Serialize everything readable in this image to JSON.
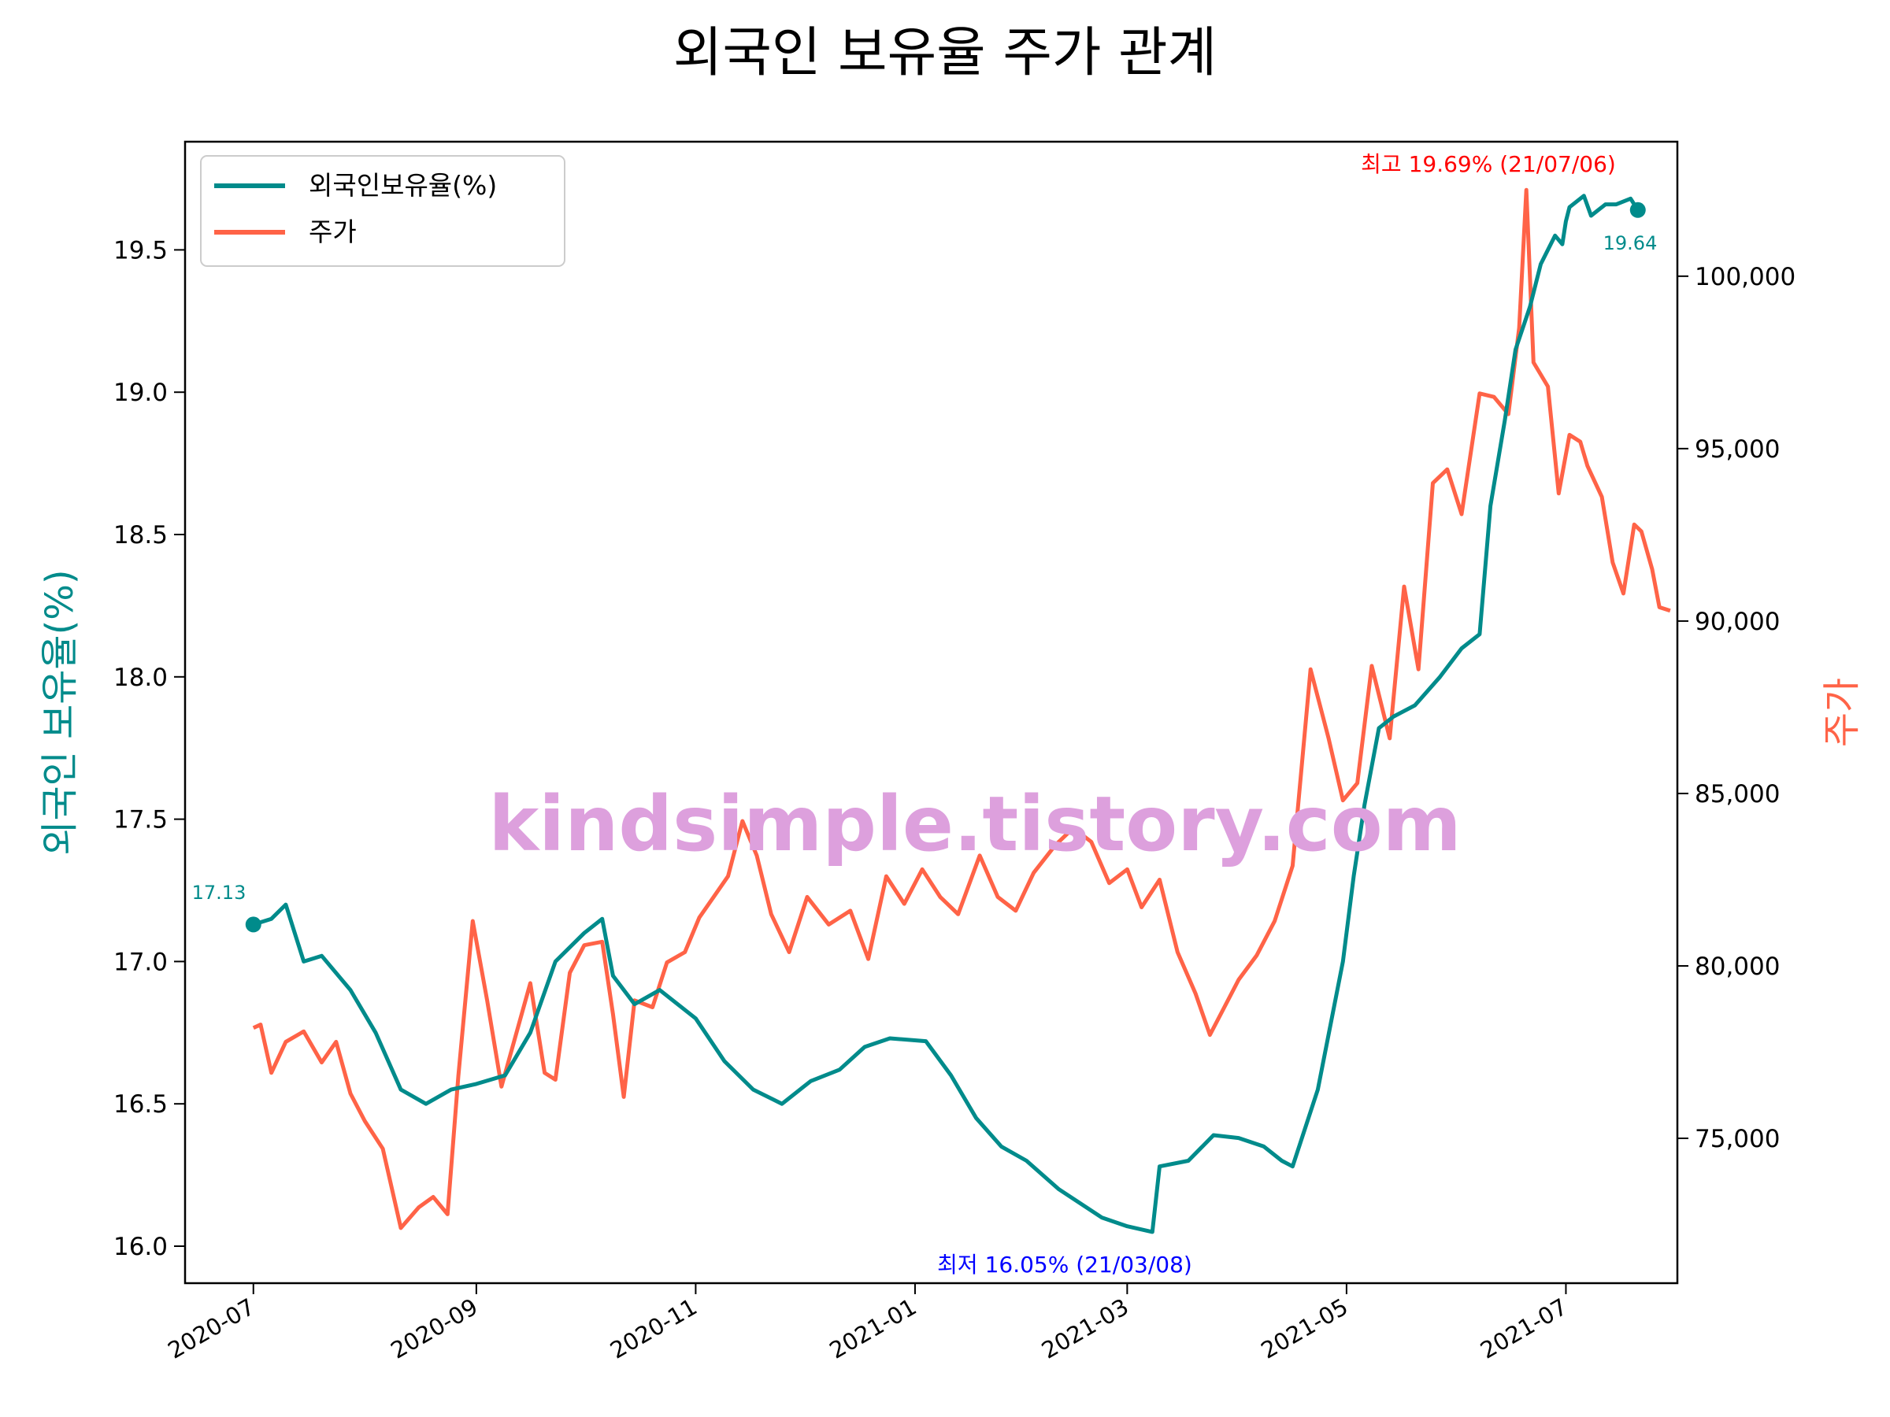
{
  "chart_data": {
    "type": "line",
    "title": "외국인 보유율 주가 관계",
    "ylabel_left": "외국인 보유율(%)",
    "ylabel_right": "주가",
    "x_range": [
      "2020-06-12",
      "2021-08-01"
    ],
    "ylim_left": [
      15.87,
      19.88
    ],
    "ylim_right": [
      70800,
      103900
    ],
    "x_ticks": [
      "2020-07",
      "2020-09",
      "2020-11",
      "2021-01",
      "2021-03",
      "2021-05",
      "2021-07"
    ],
    "y_ticks_left": [
      "16.0",
      "16.5",
      "17.0",
      "17.5",
      "18.0",
      "18.5",
      "19.0",
      "19.5"
    ],
    "y_ticks_right": [
      "75,000",
      "80,000",
      "85,000",
      "90,000",
      "95,000",
      "100,000"
    ],
    "legend_position": "top-left",
    "colors": {
      "foreign": "#008B8B",
      "price": "#FF6347",
      "max": "#FF0000",
      "min": "#0000FF",
      "watermark": "#DDA0DD"
    },
    "series": [
      {
        "name": "외국인보유율(%)",
        "axis": "left",
        "points": [
          [
            "2020-07-01",
            17.13
          ],
          [
            "2020-07-06",
            17.15
          ],
          [
            "2020-07-10",
            17.2
          ],
          [
            "2020-07-15",
            17.0
          ],
          [
            "2020-07-20",
            17.02
          ],
          [
            "2020-07-28",
            16.9
          ],
          [
            "2020-08-04",
            16.75
          ],
          [
            "2020-08-11",
            16.55
          ],
          [
            "2020-08-18",
            16.5
          ],
          [
            "2020-08-25",
            16.55
          ],
          [
            "2020-09-01",
            16.57
          ],
          [
            "2020-09-09",
            16.6
          ],
          [
            "2020-09-16",
            16.75
          ],
          [
            "2020-09-23",
            17.0
          ],
          [
            "2020-10-01",
            17.1
          ],
          [
            "2020-10-06",
            17.15
          ],
          [
            "2020-10-09",
            16.95
          ],
          [
            "2020-10-15",
            16.85
          ],
          [
            "2020-10-22",
            16.9
          ],
          [
            "2020-11-01",
            16.8
          ],
          [
            "2020-11-09",
            16.65
          ],
          [
            "2020-11-17",
            16.55
          ],
          [
            "2020-11-25",
            16.5
          ],
          [
            "2020-12-03",
            16.58
          ],
          [
            "2020-12-11",
            16.62
          ],
          [
            "2020-12-18",
            16.7
          ],
          [
            "2020-12-25",
            16.73
          ],
          [
            "2021-01-04",
            16.72
          ],
          [
            "2021-01-11",
            16.6
          ],
          [
            "2021-01-18",
            16.45
          ],
          [
            "2021-01-25",
            16.35
          ],
          [
            "2021-02-01",
            16.3
          ],
          [
            "2021-02-10",
            16.2
          ],
          [
            "2021-02-22",
            16.1
          ],
          [
            "2021-03-01",
            16.07
          ],
          [
            "2021-03-08",
            16.05
          ],
          [
            "2021-03-10",
            16.28
          ],
          [
            "2021-03-18",
            16.3
          ],
          [
            "2021-03-25",
            16.39
          ],
          [
            "2021-04-01",
            16.38
          ],
          [
            "2021-04-08",
            16.35
          ],
          [
            "2021-04-13",
            16.3
          ],
          [
            "2021-04-16",
            16.28
          ],
          [
            "2021-04-23",
            16.55
          ],
          [
            "2021-04-30",
            17.0
          ],
          [
            "2021-05-03",
            17.3
          ],
          [
            "2021-05-06",
            17.55
          ],
          [
            "2021-05-10",
            17.82
          ],
          [
            "2021-05-14",
            17.86
          ],
          [
            "2021-05-20",
            17.9
          ],
          [
            "2021-05-27",
            18.0
          ],
          [
            "2021-06-02",
            18.1
          ],
          [
            "2021-06-07",
            18.15
          ],
          [
            "2021-06-10",
            18.6
          ],
          [
            "2021-06-14",
            18.9
          ],
          [
            "2021-06-17",
            19.15
          ],
          [
            "2021-06-21",
            19.3
          ],
          [
            "2021-06-24",
            19.45
          ],
          [
            "2021-06-28",
            19.55
          ],
          [
            "2021-06-30",
            19.52
          ],
          [
            "2021-07-01",
            19.6
          ],
          [
            "2021-07-02",
            19.65
          ],
          [
            "2021-07-06",
            19.69
          ],
          [
            "2021-07-08",
            19.62
          ],
          [
            "2021-07-12",
            19.66
          ],
          [
            "2021-07-15",
            19.66
          ],
          [
            "2021-07-19",
            19.68
          ],
          [
            "2021-07-21",
            19.64
          ]
        ]
      },
      {
        "name": "주가",
        "axis": "right",
        "points": [
          [
            "2020-07-01",
            78200
          ],
          [
            "2020-07-03",
            78300
          ],
          [
            "2020-07-06",
            76900
          ],
          [
            "2020-07-10",
            77800
          ],
          [
            "2020-07-15",
            78100
          ],
          [
            "2020-07-20",
            77200
          ],
          [
            "2020-07-24",
            77800
          ],
          [
            "2020-07-28",
            76300
          ],
          [
            "2020-08-01",
            75500
          ],
          [
            "2020-08-06",
            74700
          ],
          [
            "2020-08-11",
            72400
          ],
          [
            "2020-08-16",
            73000
          ],
          [
            "2020-08-20",
            73300
          ],
          [
            "2020-08-24",
            72800
          ],
          [
            "2020-08-27",
            76800
          ],
          [
            "2020-08-31",
            81300
          ],
          [
            "2020-09-04",
            79000
          ],
          [
            "2020-09-08",
            76500
          ],
          [
            "2020-09-12",
            78000
          ],
          [
            "2020-09-16",
            79500
          ],
          [
            "2020-09-20",
            76900
          ],
          [
            "2020-09-23",
            76700
          ],
          [
            "2020-09-27",
            79800
          ],
          [
            "2020-10-01",
            80600
          ],
          [
            "2020-10-06",
            80700
          ],
          [
            "2020-10-09",
            78600
          ],
          [
            "2020-10-12",
            76200
          ],
          [
            "2020-10-15",
            79000
          ],
          [
            "2020-10-20",
            78800
          ],
          [
            "2020-10-24",
            80100
          ],
          [
            "2020-10-29",
            80400
          ],
          [
            "2020-11-02",
            81400
          ],
          [
            "2020-11-06",
            82000
          ],
          [
            "2020-11-10",
            82600
          ],
          [
            "2020-11-14",
            84200
          ],
          [
            "2020-11-18",
            83200
          ],
          [
            "2020-11-22",
            81500
          ],
          [
            "2020-11-27",
            80400
          ],
          [
            "2020-12-02",
            82000
          ],
          [
            "2020-12-08",
            81200
          ],
          [
            "2020-12-14",
            81600
          ],
          [
            "2020-12-19",
            80200
          ],
          [
            "2020-12-24",
            82600
          ],
          [
            "2020-12-29",
            81800
          ],
          [
            "2021-01-03",
            82800
          ],
          [
            "2021-01-08",
            82000
          ],
          [
            "2021-01-13",
            81500
          ],
          [
            "2021-01-19",
            83200
          ],
          [
            "2021-01-24",
            82000
          ],
          [
            "2021-01-29",
            81600
          ],
          [
            "2021-02-03",
            82700
          ],
          [
            "2021-02-09",
            83500
          ],
          [
            "2021-02-14",
            84000
          ],
          [
            "2021-02-19",
            83600
          ],
          [
            "2021-02-24",
            82400
          ],
          [
            "2021-03-01",
            82800
          ],
          [
            "2021-03-05",
            81700
          ],
          [
            "2021-03-10",
            82500
          ],
          [
            "2021-03-15",
            80400
          ],
          [
            "2021-03-20",
            79200
          ],
          [
            "2021-03-24",
            78000
          ],
          [
            "2021-03-28",
            78800
          ],
          [
            "2021-04-01",
            79600
          ],
          [
            "2021-04-06",
            80300
          ],
          [
            "2021-04-11",
            81300
          ],
          [
            "2021-04-16",
            82900
          ],
          [
            "2021-04-21",
            88600
          ],
          [
            "2021-04-26",
            86600
          ],
          [
            "2021-04-30",
            84800
          ],
          [
            "2021-05-04",
            85300
          ],
          [
            "2021-05-08",
            88700
          ],
          [
            "2021-05-13",
            86600
          ],
          [
            "2021-05-17",
            91000
          ],
          [
            "2021-05-21",
            88600
          ],
          [
            "2021-05-25",
            94000
          ],
          [
            "2021-05-29",
            94400
          ],
          [
            "2021-06-02",
            93100
          ],
          [
            "2021-06-07",
            96600
          ],
          [
            "2021-06-11",
            96500
          ],
          [
            "2021-06-15",
            96000
          ],
          [
            "2021-06-18",
            98500
          ],
          [
            "2021-06-20",
            102500
          ],
          [
            "2021-06-22",
            97500
          ],
          [
            "2021-06-26",
            96800
          ],
          [
            "2021-06-29",
            93700
          ],
          [
            "2021-07-02",
            95400
          ],
          [
            "2021-07-05",
            95200
          ],
          [
            "2021-07-07",
            94500
          ],
          [
            "2021-07-11",
            93600
          ],
          [
            "2021-07-14",
            91700
          ],
          [
            "2021-07-17",
            90800
          ],
          [
            "2021-07-20",
            92800
          ],
          [
            "2021-07-22",
            92600
          ],
          [
            "2021-07-25",
            91500
          ],
          [
            "2021-07-27",
            90400
          ],
          [
            "2021-07-30",
            90300
          ]
        ]
      }
    ],
    "annotations": [
      {
        "text": "최고 19.69% (21/07/06)",
        "kind": "max"
      },
      {
        "text": "최저 16.05% (21/03/08)",
        "kind": "min"
      },
      {
        "text": "17.13",
        "kind": "start"
      },
      {
        "text": "19.64",
        "kind": "end"
      }
    ],
    "watermark": "kindsimple.tistory.com"
  }
}
